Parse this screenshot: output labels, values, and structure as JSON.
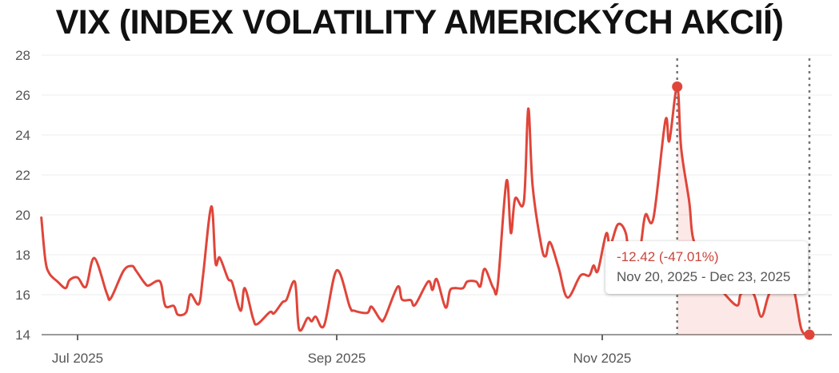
{
  "chart_data": {
    "type": "line",
    "title": "VIX (INDEX VOLATILITY AMERICKÝCH AKCIÍ)",
    "xlabel": "",
    "ylabel": "",
    "ylim": [
      14,
      28
    ],
    "yticks": [
      "14",
      "16",
      "18",
      "20",
      "22",
      "24",
      "26",
      "28"
    ],
    "xticks": [
      {
        "date": "2025-07-01",
        "label": "Jul 2025"
      },
      {
        "date": "2025-09-01",
        "label": "Sep 2025"
      },
      {
        "date": "2025-11-01",
        "label": "Nov 2025"
      }
    ],
    "grid": true,
    "line_color": "#e0453a",
    "points": [
      [
        "2025-06-22",
        19.86
      ],
      [
        "2025-06-23",
        17.73
      ],
      [
        "2025-06-24",
        17.06
      ],
      [
        "2025-06-26",
        16.66
      ],
      [
        "2025-06-28",
        16.33
      ],
      [
        "2025-06-29",
        16.73
      ],
      [
        "2025-07-01",
        16.86
      ],
      [
        "2025-07-03",
        16.4
      ],
      [
        "2025-07-05",
        17.84
      ],
      [
        "2025-07-08",
        16.06
      ],
      [
        "2025-07-09",
        15.84
      ],
      [
        "2025-07-12",
        17.2
      ],
      [
        "2025-07-14",
        17.44
      ],
      [
        "2025-07-15",
        17.2
      ],
      [
        "2025-07-17",
        16.6
      ],
      [
        "2025-07-18",
        16.46
      ],
      [
        "2025-07-20",
        16.69
      ],
      [
        "2025-07-21",
        16.53
      ],
      [
        "2025-07-22",
        15.44
      ],
      [
        "2025-07-24",
        15.44
      ],
      [
        "2025-07-25",
        15.0
      ],
      [
        "2025-07-27",
        15.13
      ],
      [
        "2025-07-28",
        16.02
      ],
      [
        "2025-07-30",
        15.53
      ],
      [
        "2025-07-31",
        16.93
      ],
      [
        "2025-08-02",
        20.42
      ],
      [
        "2025-08-03",
        17.6
      ],
      [
        "2025-08-04",
        17.86
      ],
      [
        "2025-08-06",
        16.8
      ],
      [
        "2025-08-07",
        16.6
      ],
      [
        "2025-08-09",
        15.2
      ],
      [
        "2025-08-10",
        16.33
      ],
      [
        "2025-08-12",
        14.8
      ],
      [
        "2025-08-13",
        14.53
      ],
      [
        "2025-08-16",
        15.13
      ],
      [
        "2025-08-17",
        15.07
      ],
      [
        "2025-08-19",
        15.62
      ],
      [
        "2025-08-20",
        15.76
      ],
      [
        "2025-08-22",
        16.64
      ],
      [
        "2025-08-23",
        14.27
      ],
      [
        "2025-08-25",
        14.83
      ],
      [
        "2025-08-26",
        14.67
      ],
      [
        "2025-08-27",
        14.9
      ],
      [
        "2025-08-29",
        14.47
      ],
      [
        "2025-09-01",
        17.22
      ],
      [
        "2025-09-04",
        15.4
      ],
      [
        "2025-09-05",
        15.2
      ],
      [
        "2025-09-08",
        15.09
      ],
      [
        "2025-09-09",
        15.4
      ],
      [
        "2025-09-11",
        14.77
      ],
      [
        "2025-09-12",
        14.83
      ],
      [
        "2025-09-15",
        16.4
      ],
      [
        "2025-09-16",
        15.76
      ],
      [
        "2025-09-18",
        15.73
      ],
      [
        "2025-09-19",
        15.49
      ],
      [
        "2025-09-22",
        16.66
      ],
      [
        "2025-09-23",
        16.24
      ],
      [
        "2025-09-24",
        16.77
      ],
      [
        "2025-09-26",
        15.36
      ],
      [
        "2025-09-27",
        16.2
      ],
      [
        "2025-09-28",
        16.33
      ],
      [
        "2025-09-30",
        16.33
      ],
      [
        "2025-10-01",
        16.66
      ],
      [
        "2025-10-03",
        16.66
      ],
      [
        "2025-10-04",
        16.42
      ],
      [
        "2025-10-05",
        17.3
      ],
      [
        "2025-10-07",
        16.33
      ],
      [
        "2025-10-08",
        16.5
      ],
      [
        "2025-10-10",
        21.7
      ],
      [
        "2025-10-11",
        19.09
      ],
      [
        "2025-10-12",
        20.82
      ],
      [
        "2025-10-14",
        20.68
      ],
      [
        "2025-10-15",
        25.32
      ],
      [
        "2025-10-16",
        21.46
      ],
      [
        "2025-10-18",
        18.46
      ],
      [
        "2025-10-19",
        17.93
      ],
      [
        "2025-10-20",
        18.63
      ],
      [
        "2025-10-22",
        17.33
      ],
      [
        "2025-10-24",
        15.86
      ],
      [
        "2025-10-27",
        16.96
      ],
      [
        "2025-10-29",
        16.96
      ],
      [
        "2025-10-30",
        17.46
      ],
      [
        "2025-10-31",
        17.2
      ],
      [
        "2025-11-02",
        19.06
      ],
      [
        "2025-11-03",
        18.46
      ],
      [
        "2025-11-05",
        19.53
      ],
      [
        "2025-11-07",
        19.06
      ],
      [
        "2025-11-08",
        17.5
      ],
      [
        "2025-11-10",
        17.3
      ],
      [
        "2025-11-11",
        18.8
      ],
      [
        "2025-11-12",
        20.02
      ],
      [
        "2025-11-14",
        19.86
      ],
      [
        "2025-11-17",
        24.72
      ],
      [
        "2025-11-18",
        23.7
      ],
      [
        "2025-11-20",
        26.42
      ],
      [
        "2025-11-21",
        23.32
      ],
      [
        "2025-11-23",
        20.66
      ],
      [
        "2025-11-24",
        18.8
      ],
      [
        "2025-11-27",
        17.5
      ],
      [
        "2025-11-29",
        16.8
      ],
      [
        "2025-12-02",
        16.0
      ],
      [
        "2025-12-05",
        15.46
      ],
      [
        "2025-12-06",
        16.06
      ],
      [
        "2025-12-09",
        16.06
      ],
      [
        "2025-12-11",
        14.9
      ],
      [
        "2025-12-13",
        16.06
      ],
      [
        "2025-12-16",
        16.8
      ],
      [
        "2025-12-19",
        16.3
      ],
      [
        "2025-12-21",
        14.27
      ],
      [
        "2025-12-23",
        14.0
      ]
    ],
    "selection": {
      "start": "2025-11-20",
      "end": "2025-12-23",
      "start_value": 26.42,
      "end_value": 14.0
    },
    "tooltip": {
      "change": "-12.42 (-47.01%)",
      "range": "Nov 20, 2025 - Dec 23, 2025"
    }
  }
}
